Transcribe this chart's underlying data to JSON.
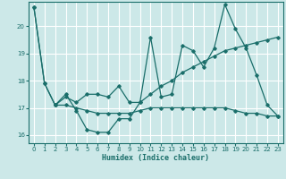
{
  "xlabel": "Humidex (Indice chaleur)",
  "background_color": "#cce8e8",
  "grid_color": "#ffffff",
  "line_color": "#1a6e6a",
  "xlim": [
    -0.5,
    23.5
  ],
  "ylim": [
    15.7,
    20.9
  ],
  "yticks": [
    16,
    17,
    18,
    19,
    20
  ],
  "xticks": [
    0,
    1,
    2,
    3,
    4,
    5,
    6,
    7,
    8,
    9,
    10,
    11,
    12,
    13,
    14,
    15,
    16,
    17,
    18,
    19,
    20,
    21,
    22,
    23
  ],
  "line1_x": [
    0,
    1,
    2,
    3,
    4,
    5,
    6,
    7,
    8,
    9,
    10,
    11,
    12,
    13,
    14,
    15,
    16,
    17,
    18,
    19,
    20,
    21,
    22,
    23
  ],
  "line1_y": [
    20.7,
    17.9,
    17.1,
    17.5,
    16.9,
    16.2,
    16.1,
    16.1,
    16.6,
    16.6,
    17.2,
    19.6,
    17.4,
    17.5,
    19.3,
    19.1,
    18.5,
    19.2,
    20.8,
    19.9,
    19.2,
    18.2,
    17.1,
    16.7
  ],
  "line2_x": [
    0,
    1,
    2,
    3,
    4,
    5,
    6,
    7,
    8,
    9,
    10,
    11,
    12,
    13,
    14,
    15,
    16,
    17,
    18,
    19,
    20,
    21,
    22,
    23
  ],
  "line2_y": [
    20.7,
    17.9,
    17.1,
    17.4,
    17.2,
    17.5,
    17.5,
    17.4,
    17.8,
    17.2,
    17.2,
    17.5,
    17.8,
    18.0,
    18.3,
    18.5,
    18.7,
    18.9,
    19.1,
    19.2,
    19.3,
    19.4,
    19.5,
    19.6
  ],
  "line3_x": [
    2,
    3,
    4,
    5,
    6,
    7,
    8,
    9,
    10,
    11,
    12,
    13,
    14,
    15,
    16,
    17,
    18,
    19,
    20,
    21,
    22,
    23
  ],
  "line3_y": [
    17.1,
    17.1,
    17.0,
    16.9,
    16.8,
    16.8,
    16.8,
    16.8,
    16.9,
    17.0,
    17.0,
    17.0,
    17.0,
    17.0,
    17.0,
    17.0,
    17.0,
    16.9,
    16.8,
    16.8,
    16.7,
    16.7
  ]
}
